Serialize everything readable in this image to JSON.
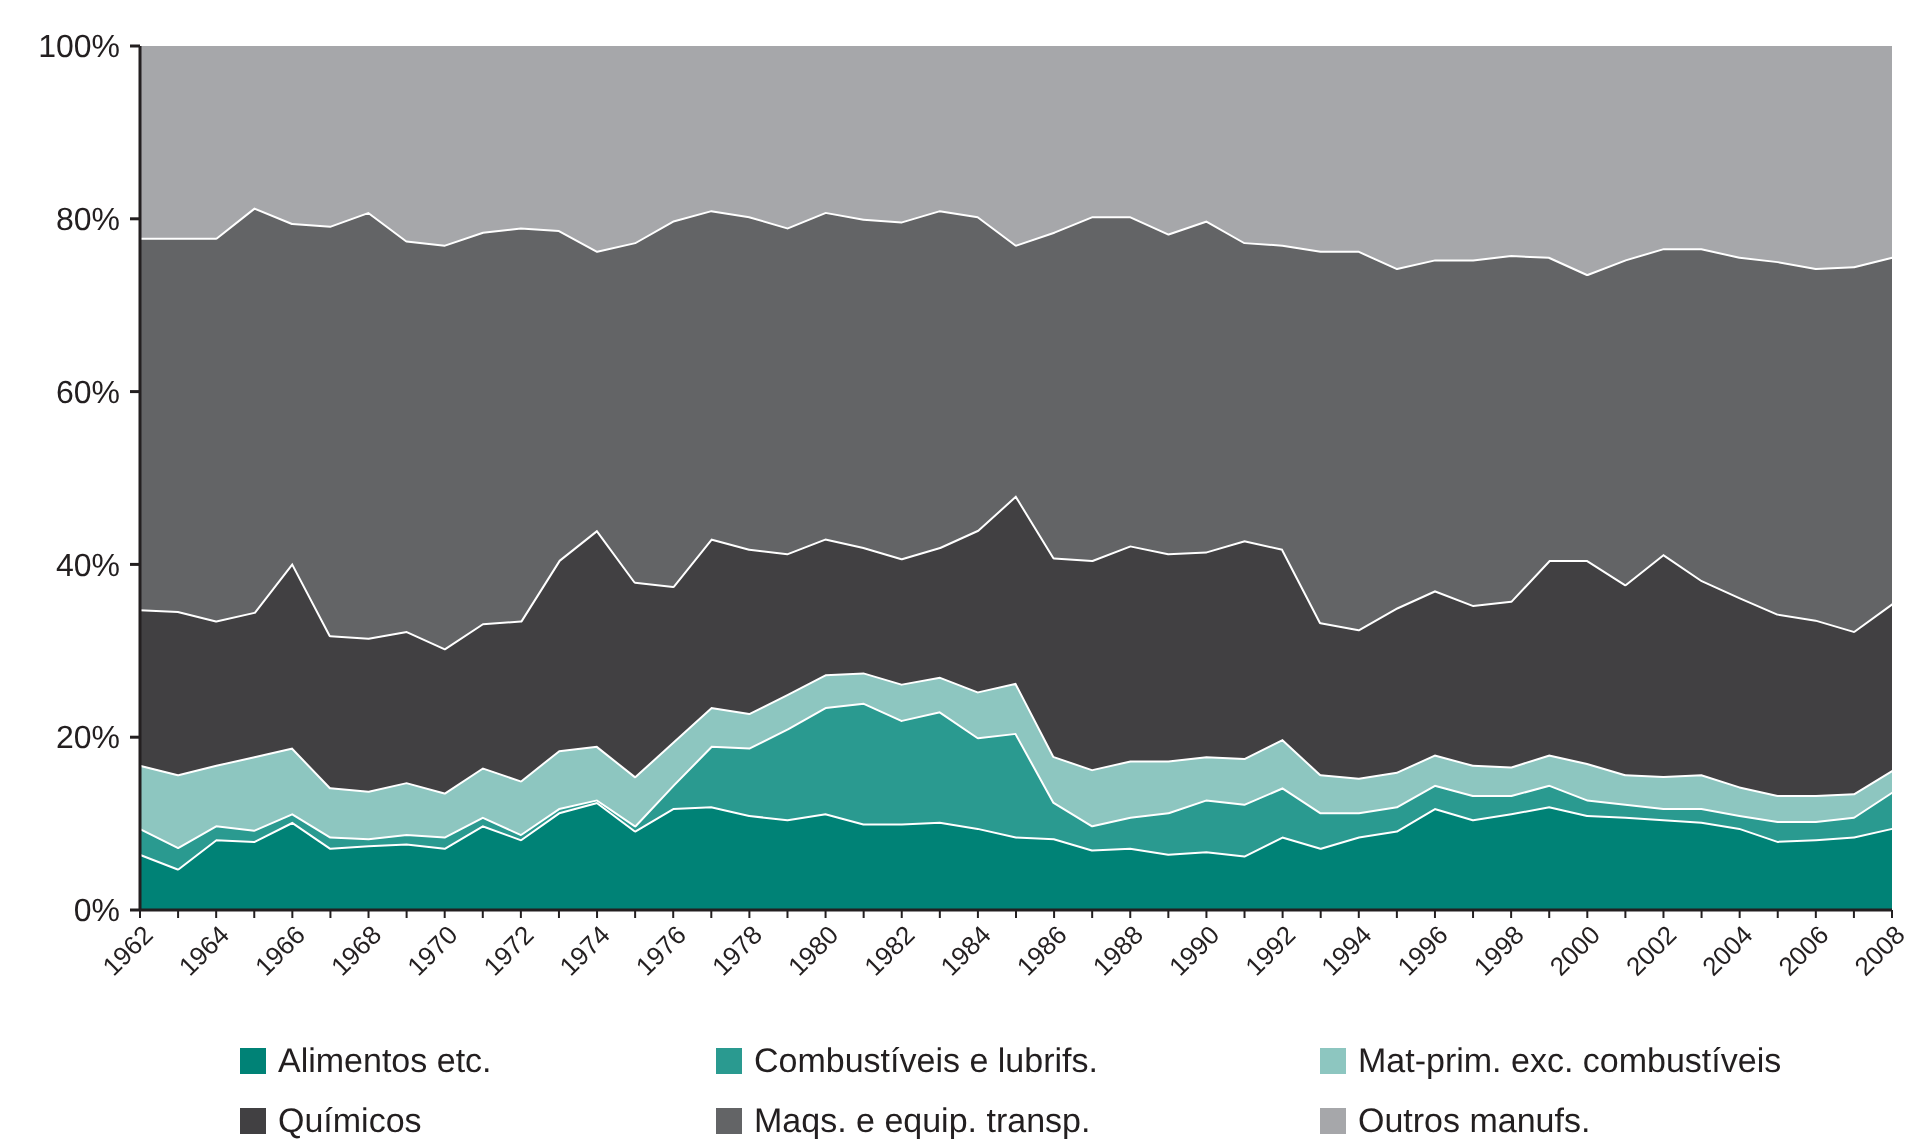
{
  "chart_data": {
    "type": "area",
    "stacked": true,
    "x": [
      1962,
      1963,
      1964,
      1965,
      1966,
      1967,
      1968,
      1969,
      1970,
      1971,
      1972,
      1973,
      1974,
      1975,
      1976,
      1977,
      1978,
      1979,
      1980,
      1981,
      1982,
      1983,
      1984,
      1985,
      1986,
      1987,
      1988,
      1989,
      1990,
      1991,
      1992,
      1993,
      1994,
      1995,
      1996,
      1997,
      1998,
      1999,
      2000,
      2001,
      2002,
      2003,
      2004,
      2005,
      2006,
      2007,
      2008
    ],
    "xlim": [
      1962,
      2008
    ],
    "xticks": [
      1962,
      1964,
      1966,
      1968,
      1970,
      1972,
      1974,
      1976,
      1978,
      1980,
      1982,
      1984,
      1986,
      1988,
      1990,
      1992,
      1994,
      1996,
      1998,
      2000,
      2002,
      2004,
      2006,
      2008
    ],
    "ylim": [
      0,
      100
    ],
    "yticks": [
      {
        "value": 0,
        "label": "0%"
      },
      {
        "value": 20,
        "label": "20%"
      },
      {
        "value": 40,
        "label": "40%"
      },
      {
        "value": 60,
        "label": "60%"
      },
      {
        "value": 80,
        "label": "80%"
      },
      {
        "value": 100,
        "label": "100%"
      }
    ],
    "grid": false,
    "legend": "bottom",
    "series": [
      {
        "name": "Alimentos etc.",
        "color": "#008276",
        "values": [
          6.5,
          4.8,
          8.2,
          8.0,
          10.2,
          7.2,
          7.5,
          7.7,
          7.2,
          9.8,
          8.2,
          11.3,
          12.5,
          9.2,
          11.8,
          12.0,
          11.0,
          10.5,
          11.2,
          10.0,
          10.0,
          10.2,
          9.5,
          8.5,
          8.3,
          7.0,
          7.2,
          6.5,
          6.8,
          6.3,
          8.5,
          7.2,
          8.5,
          9.2,
          11.8,
          10.5,
          11.2,
          12.0,
          11.0,
          10.8,
          10.5,
          10.2,
          9.5,
          8.0,
          8.2,
          8.5,
          9.5
        ]
      },
      {
        "name": "Combustíveis e lubrifs.",
        "color": "#2a9a90",
        "values": [
          3.0,
          2.5,
          1.6,
          1.3,
          1.0,
          1.3,
          0.8,
          1.1,
          1.3,
          1.0,
          0.6,
          0.5,
          0.3,
          0.6,
          2.7,
          7.0,
          7.8,
          10.5,
          12.3,
          14.0,
          12.0,
          12.8,
          10.5,
          12.0,
          4.2,
          2.8,
          3.6,
          4.8,
          6.0,
          6.0,
          5.7,
          4.1,
          2.8,
          2.8,
          2.7,
          2.8,
          2.1,
          2.5,
          1.8,
          1.5,
          1.3,
          1.6,
          1.5,
          2.3,
          2.1,
          2.3,
          4.2
        ]
      },
      {
        "name": "Mat-prim. exc. combustíveis",
        "color": "#8dc6c0",
        "values": [
          7.3,
          8.4,
          7.0,
          8.5,
          7.6,
          5.7,
          5.5,
          6.0,
          5.1,
          5.7,
          6.2,
          6.7,
          6.2,
          5.7,
          5.0,
          4.5,
          4.0,
          4.0,
          3.8,
          3.5,
          4.2,
          4.0,
          5.3,
          5.8,
          5.3,
          6.5,
          6.5,
          6.0,
          5.0,
          5.3,
          5.6,
          4.4,
          4.0,
          4.0,
          3.5,
          3.5,
          3.3,
          3.5,
          4.2,
          3.4,
          3.7,
          3.9,
          3.3,
          3.0,
          3.0,
          2.7,
          2.5
        ]
      },
      {
        "name": "Químicos",
        "color": "#414042",
        "values": [
          18.0,
          18.9,
          16.7,
          16.7,
          21.4,
          17.6,
          17.7,
          17.5,
          16.7,
          16.7,
          18.5,
          22.0,
          25.0,
          22.5,
          18.0,
          19.5,
          19.0,
          16.3,
          15.7,
          14.5,
          14.5,
          15.0,
          18.7,
          21.7,
          23.0,
          24.2,
          24.9,
          24.0,
          23.7,
          25.2,
          22.0,
          17.6,
          17.2,
          19.0,
          19.0,
          18.5,
          19.2,
          22.5,
          23.5,
          22.0,
          25.7,
          22.5,
          21.9,
          21.0,
          20.3,
          18.8,
          19.3
        ]
      },
      {
        "name": "Maqs. e equip. transp.",
        "color": "#636466",
        "values": [
          43.0,
          43.2,
          44.3,
          46.8,
          39.3,
          47.4,
          49.3,
          45.2,
          46.7,
          45.3,
          45.5,
          38.2,
          32.3,
          39.3,
          42.3,
          38.0,
          38.5,
          37.7,
          37.8,
          38.0,
          39.0,
          39.0,
          36.3,
          29.0,
          37.7,
          39.8,
          38.1,
          37.0,
          38.3,
          34.5,
          35.2,
          43.0,
          43.8,
          39.3,
          38.3,
          40.0,
          40.0,
          35.1,
          33.1,
          37.6,
          35.4,
          38.4,
          39.4,
          40.8,
          40.7,
          42.2,
          40.1
        ]
      },
      {
        "name": "Outros manufs.",
        "color": "#a6a7aa",
        "values": [
          22.2,
          22.2,
          22.2,
          18.7,
          20.5,
          20.8,
          19.2,
          22.5,
          23.0,
          21.5,
          21.0,
          21.3,
          23.7,
          22.7,
          20.2,
          19.0,
          19.7,
          21.0,
          19.2,
          20.0,
          20.3,
          19.0,
          19.7,
          23.0,
          21.5,
          19.7,
          19.7,
          21.7,
          20.2,
          22.7,
          23.0,
          23.7,
          23.7,
          25.7,
          24.7,
          24.7,
          24.2,
          24.4,
          26.4,
          24.7,
          23.4,
          23.4,
          24.4,
          24.9,
          25.7,
          25.5,
          24.4
        ]
      }
    ]
  }
}
